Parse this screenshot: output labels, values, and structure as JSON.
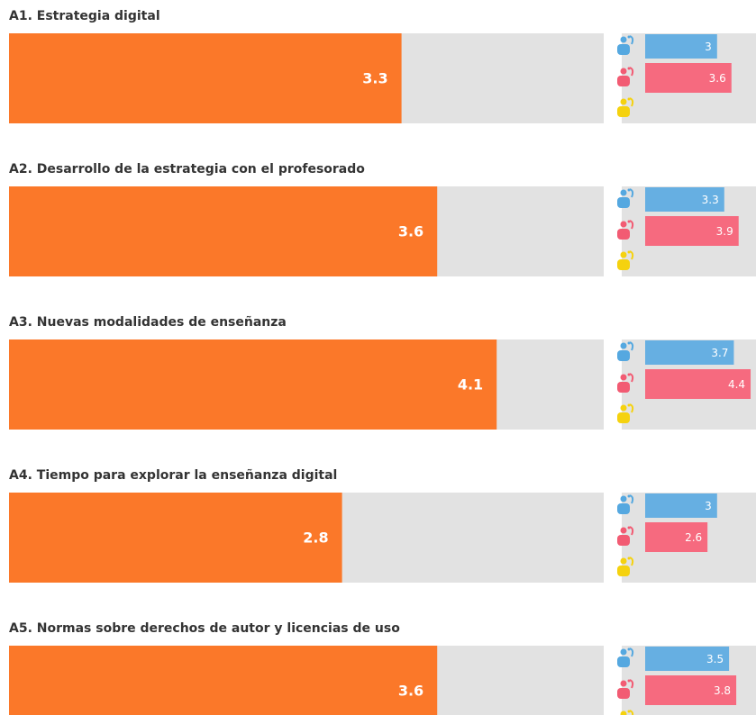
{
  "chart_data": [
    {
      "type": "bar",
      "title": "A1. Estrategia digital",
      "values": [
        3.3
      ],
      "color": "#fb7829",
      "xlim": [
        0,
        5
      ],
      "series": [
        {
          "color": "#66afe2",
          "values": [
            3
          ]
        },
        {
          "color": "#f66a7f",
          "values": [
            3.6
          ]
        }
      ]
    },
    {
      "type": "bar",
      "title": "A2. Desarrollo de la estrategia con el profesorado",
      "values": [
        3.6
      ],
      "color": "#fb7829",
      "xlim": [
        0,
        5
      ],
      "series": [
        {
          "color": "#66afe2",
          "values": [
            3.3
          ]
        },
        {
          "color": "#f66a7f",
          "values": [
            3.9
          ]
        }
      ]
    },
    {
      "type": "bar",
      "title": "A3. Nuevas modalidades de enseñanza",
      "values": [
        4.1
      ],
      "color": "#fb7829",
      "xlim": [
        0,
        5
      ],
      "series": [
        {
          "color": "#66afe2",
          "values": [
            3.7
          ]
        },
        {
          "color": "#f66a7f",
          "values": [
            4.4
          ]
        }
      ]
    },
    {
      "type": "bar",
      "title": "A4. Tiempo para explorar la enseñanza digital",
      "values": [
        2.8
      ],
      "color": "#fb7829",
      "xlim": [
        0,
        5
      ],
      "series": [
        {
          "color": "#66afe2",
          "values": [
            3
          ]
        },
        {
          "color": "#f66a7f",
          "values": [
            2.6
          ]
        }
      ]
    },
    {
      "type": "bar",
      "title": "A5. Normas sobre derechos de autor y licencias de uso",
      "values": [
        3.6
      ],
      "color": "#fb7829",
      "xlim": [
        0,
        5
      ],
      "series": [
        {
          "color": "#66afe2",
          "values": [
            3.5
          ]
        },
        {
          "color": "#f66a7f",
          "values": [
            3.8
          ]
        }
      ]
    }
  ]
}
